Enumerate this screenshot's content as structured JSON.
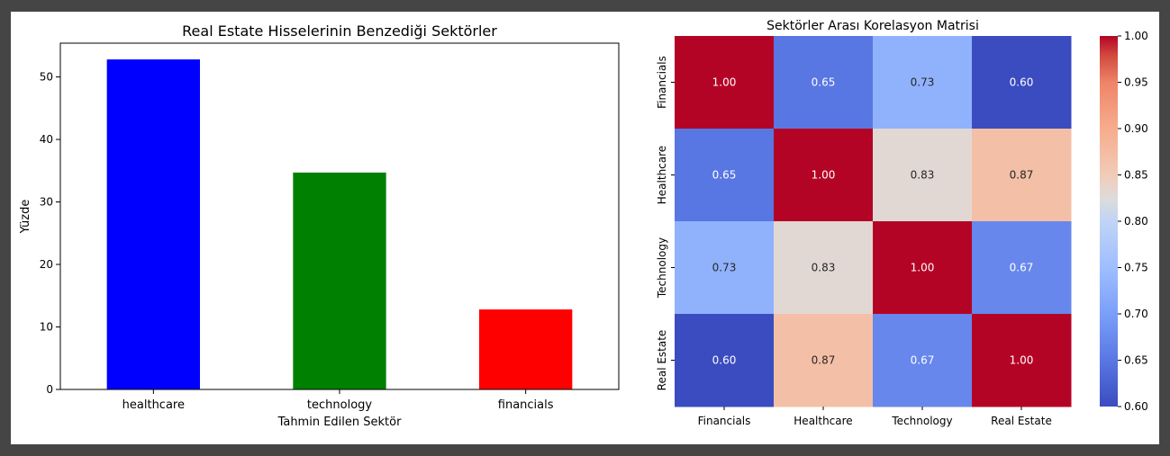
{
  "charts": [
    {
      "type": "bar",
      "title": "Real Estate Hisselerinin Benzediği Sektörler",
      "xlabel": "Tahmin Edilen Sektör",
      "ylabel": "Yüzde",
      "categories": [
        "healthcare",
        "technology",
        "financials"
      ],
      "values": [
        52.8,
        34.7,
        12.8
      ],
      "colors": [
        "#0000ff",
        "#008000",
        "#ff0000"
      ],
      "ylim": [
        0,
        55.4
      ],
      "yticks": [
        "0",
        "10",
        "20",
        "30",
        "40",
        "50"
      ],
      "ytick_values": [
        0,
        10,
        20,
        30,
        40,
        50
      ],
      "grid": false,
      "legend": false
    },
    {
      "type": "heatmap",
      "title": "Sektörler Arası Korelasyon Matrisi",
      "rows": [
        "Financials",
        "Healthcare",
        "Technology",
        "Real Estate"
      ],
      "columns": [
        "Financials",
        "Healthcare",
        "Technology",
        "Real Estate"
      ],
      "values": [
        [
          1.0,
          0.65,
          0.73,
          0.6
        ],
        [
          0.65,
          1.0,
          0.83,
          0.87
        ],
        [
          0.73,
          0.83,
          1.0,
          0.67
        ],
        [
          0.6,
          0.87,
          0.67,
          1.0
        ]
      ],
      "labels": [
        [
          "1.00",
          "0.65",
          "0.73",
          "0.60"
        ],
        [
          "0.65",
          "1.00",
          "0.83",
          "0.87"
        ],
        [
          "0.73",
          "0.83",
          "1.00",
          "0.67"
        ],
        [
          "0.60",
          "0.87",
          "0.67",
          "1.00"
        ]
      ],
      "colormap": "coolwarm",
      "vmin": 0.6,
      "vmax": 1.0,
      "colorbar_ticks": [
        "1.00",
        "0.95",
        "0.90",
        "0.85",
        "0.80",
        "0.75",
        "0.70",
        "0.65",
        "0.60"
      ],
      "colorbar_tick_values": [
        1.0,
        0.95,
        0.9,
        0.85,
        0.8,
        0.75,
        0.7,
        0.65,
        0.6
      ]
    }
  ]
}
